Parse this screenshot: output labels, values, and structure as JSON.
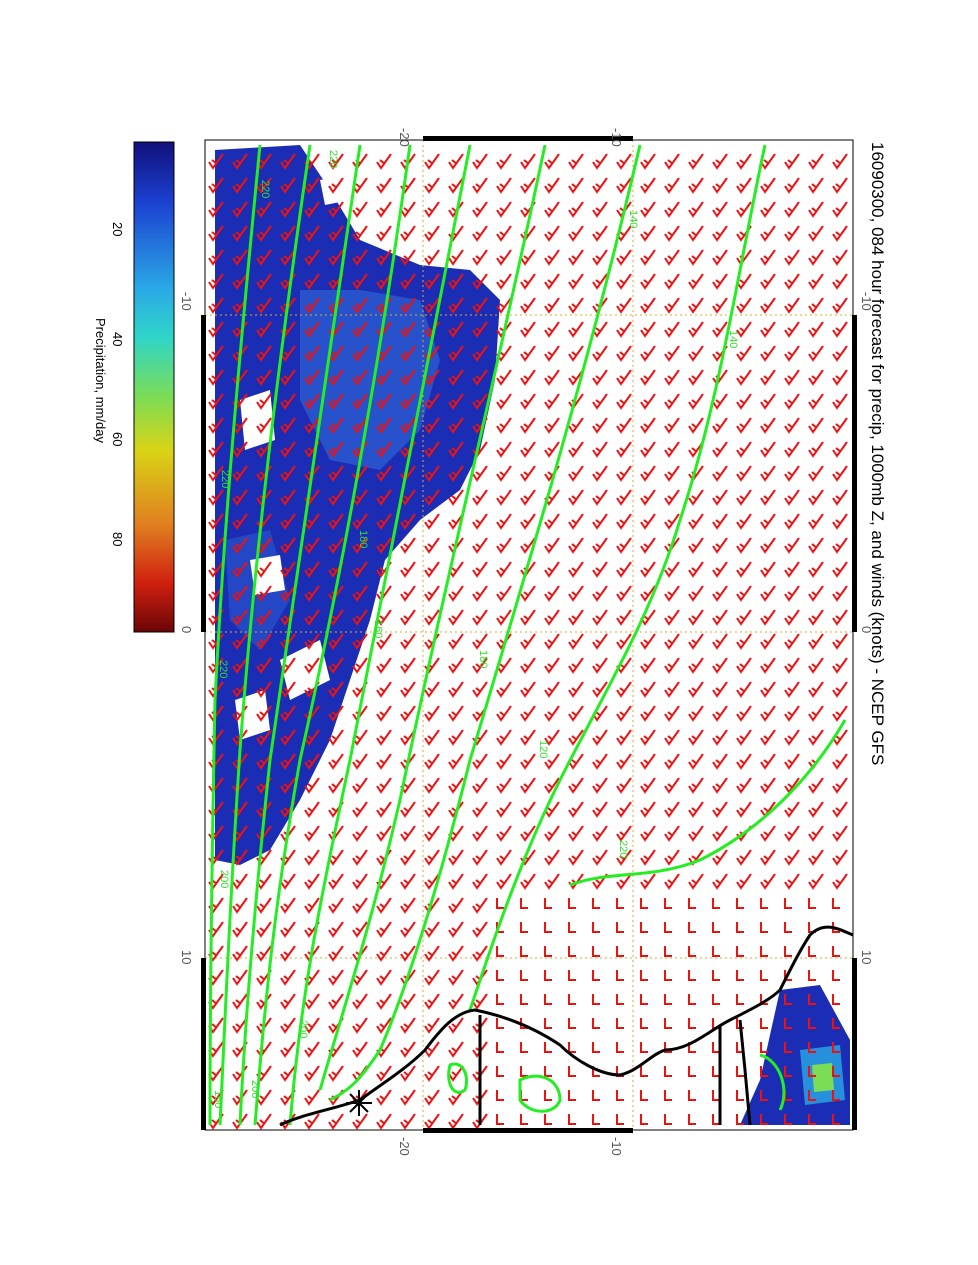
{
  "title": "16090300, 084 hour forecast for precip, 1000mb Z, and winds (knots) - NCEP GFS",
  "map": {
    "top_ticks": [
      "-20",
      "-10"
    ],
    "bottom_ticks": [
      "-20",
      "-10"
    ],
    "left_ticks": [
      "-10",
      "0",
      "10"
    ],
    "right_ticks": [
      "-10",
      "0",
      "10"
    ],
    "contour_labels": [
      "220",
      "220",
      "220",
      "200",
      "200",
      "180",
      "160",
      "140",
      "140",
      "120",
      "220",
      "220",
      "200",
      "180",
      "160"
    ],
    "colors": {
      "wind_barb": "#ee1111",
      "contour": "#22ee22",
      "coast": "#000000",
      "gridline": "#ddaa33",
      "precip_light": "#1a2db4",
      "precip_mid": "#2e62d6"
    }
  },
  "colorbar": {
    "label": "Precipitation, mm/day",
    "ticks": [
      "20",
      "40",
      "60",
      "80"
    ],
    "stops": [
      "#11107a",
      "#1b3fd0",
      "#2aa9e6",
      "#2fd6c7",
      "#7bdc55",
      "#d9d416",
      "#e08020",
      "#d02010",
      "#6a0505"
    ]
  }
}
